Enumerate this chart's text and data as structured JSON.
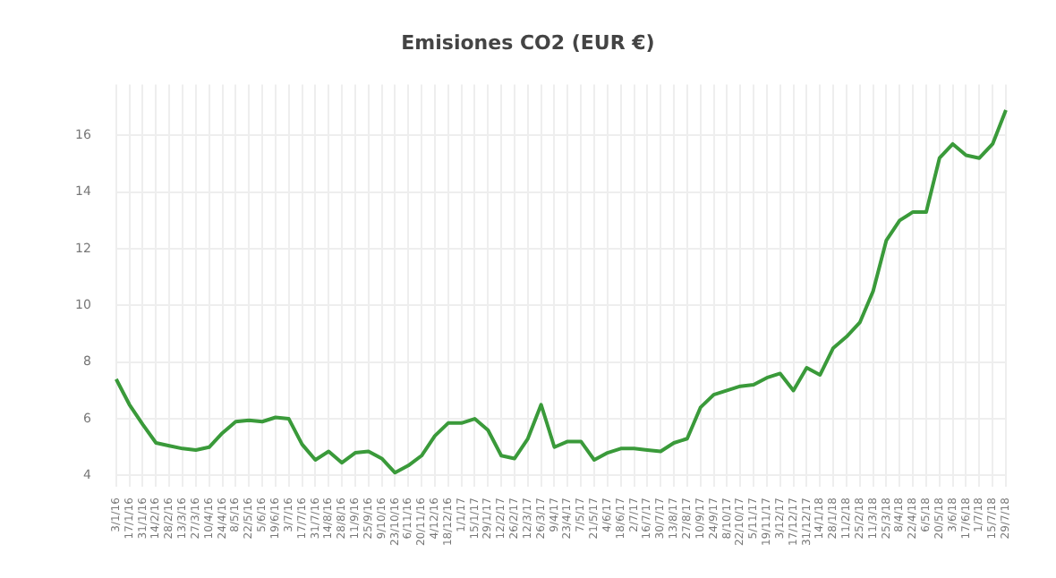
{
  "chart_data": {
    "type": "line",
    "title": "Emisiones CO2 (EUR €)",
    "categories": [
      "3/1/16",
      "17/1/16",
      "31/1/16",
      "14/2/16",
      "28/2/16",
      "13/3/16",
      "27/3/16",
      "10/4/16",
      "24/4/16",
      "8/5/16",
      "22/5/16",
      "5/6/16",
      "19/6/16",
      "3/7/16",
      "17/7/16",
      "31/7/16",
      "14/8/16",
      "28/8/16",
      "11/9/16",
      "25/9/16",
      "9/10/16",
      "23/10/16",
      "6/11/16",
      "20/11/16",
      "4/12/16",
      "18/12/16",
      "1/1/17",
      "15/1/17",
      "29/1/17",
      "12/2/17",
      "26/2/17",
      "12/3/17",
      "26/3/17",
      "9/4/17",
      "23/4/17",
      "7/5/17",
      "21/5/17",
      "4/6/17",
      "18/6/17",
      "2/7/17",
      "16/7/17",
      "30/7/17",
      "13/8/17",
      "27/8/17",
      "10/9/17",
      "24/9/17",
      "8/10/17",
      "22/10/17",
      "5/11/17",
      "19/11/17",
      "3/12/17",
      "17/12/17",
      "31/12/17",
      "14/1/18",
      "28/1/18",
      "11/2/18",
      "25/2/18",
      "11/3/18",
      "25/3/18",
      "8/4/18",
      "22/4/18",
      "6/5/18",
      "20/5/18",
      "3/6/18",
      "17/6/18",
      "1/7/18",
      "15/7/18",
      "29/7/18"
    ],
    "series": [
      {
        "color": "#3a9a3a",
        "values": [
          7.4,
          6.5,
          5.8,
          5.15,
          5.05,
          4.95,
          4.9,
          5.0,
          5.5,
          5.9,
          5.95,
          5.9,
          6.05,
          6.0,
          5.1,
          4.55,
          4.85,
          4.45,
          4.8,
          4.85,
          4.6,
          4.1,
          4.35,
          4.7,
          5.4,
          5.85,
          5.85,
          6.0,
          5.6,
          4.7,
          4.6,
          5.3,
          6.5,
          5.0,
          5.2,
          5.2,
          4.55,
          4.8,
          4.95,
          4.95,
          4.9,
          4.85,
          5.15,
          5.3,
          6.4,
          6.85,
          7.0,
          7.15,
          7.2,
          7.45,
          7.6,
          7.0,
          7.8,
          7.55,
          8.5,
          8.9,
          9.4,
          10.5,
          12.3,
          13.0,
          13.3,
          13.3,
          15.2,
          15.7,
          15.3,
          15.2,
          15.7,
          16.9
        ]
      }
    ],
    "ylim": [
      3.6,
      17.8
    ],
    "yticks": [
      4,
      6,
      8,
      10,
      12,
      14,
      16
    ],
    "grid": true,
    "legend": false,
    "marker": "none",
    "line_style": "solid"
  }
}
